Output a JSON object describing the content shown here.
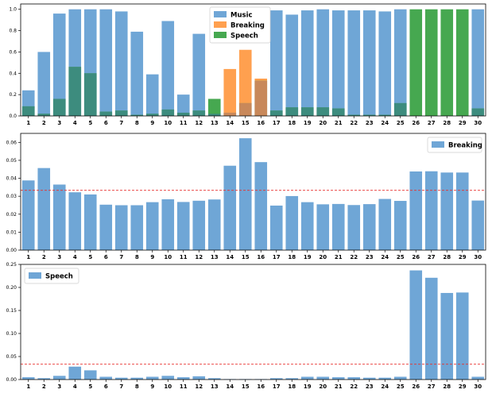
{
  "colors": {
    "music": "#6fa6d6",
    "breaking": "#ffa04f",
    "speech": "#46a850",
    "overlap_music_speech": "#3d8c7e",
    "overlap_breaking_speech": "#c8885a",
    "threshold": "#e8302e",
    "axes": "#000000"
  },
  "chart_data": [
    {
      "type": "bar",
      "title": "",
      "stacking": "overlay",
      "categories": [
        "1",
        "2",
        "3",
        "4",
        "5",
        "6",
        "7",
        "8",
        "9",
        "10",
        "11",
        "12",
        "13",
        "14",
        "15",
        "16",
        "17",
        "18",
        "19",
        "20",
        "21",
        "22",
        "23",
        "24",
        "25",
        "26",
        "27",
        "28",
        "29",
        "30"
      ],
      "ylim": [
        0,
        1.05
      ],
      "yticks": [
        "0.0",
        "0.2",
        "0.4",
        "0.6",
        "0.8",
        "1.0"
      ],
      "ytick_values": [
        0,
        0.2,
        0.4,
        0.6,
        0.8,
        1.0
      ],
      "legend": {
        "placement": "top-center",
        "entries": [
          "Music",
          "Breaking",
          "Speech"
        ]
      },
      "series": [
        {
          "name": "Music",
          "color_key": "music",
          "values": [
            0.24,
            0.6,
            0.96,
            1.0,
            1.0,
            1.0,
            0.98,
            0.79,
            0.39,
            0.89,
            0.2,
            0.77,
            0.02,
            0.01,
            0.0,
            0.01,
            0.99,
            0.95,
            0.99,
            1.0,
            0.99,
            0.99,
            0.99,
            0.98,
            1.0,
            0.01,
            0.0,
            0.0,
            0.0,
            1.0
          ]
        },
        {
          "name": "Breaking",
          "color_key": "breaking",
          "values": [
            0,
            0,
            0,
            0,
            0,
            0,
            0,
            0,
            0,
            0,
            0,
            0,
            0,
            0.44,
            0.62,
            0.35,
            0,
            0,
            0,
            0,
            0,
            0,
            0,
            0,
            0,
            0,
            0,
            0,
            0,
            0
          ]
        },
        {
          "name": "Speech",
          "color_key": "speech",
          "values": [
            0.09,
            0.02,
            0.16,
            0.46,
            0.4,
            0.04,
            0.05,
            0.01,
            0.02,
            0.06,
            0.03,
            0.05,
            0.16,
            0.03,
            0.12,
            0.33,
            0.05,
            0.08,
            0.08,
            0.08,
            0.07,
            0.01,
            0.01,
            0.01,
            0.12,
            1.0,
            1.0,
            1.0,
            1.0,
            0.07
          ]
        }
      ]
    },
    {
      "type": "bar",
      "title": "",
      "categories": [
        "1",
        "2",
        "3",
        "4",
        "5",
        "6",
        "7",
        "8",
        "9",
        "10",
        "11",
        "12",
        "13",
        "14",
        "15",
        "16",
        "17",
        "18",
        "19",
        "20",
        "21",
        "22",
        "23",
        "24",
        "25",
        "26",
        "27",
        "28",
        "29",
        "30"
      ],
      "ylim": [
        0,
        0.065
      ],
      "yticks": [
        "0.00",
        "0.01",
        "0.02",
        "0.03",
        "0.04",
        "0.05",
        "0.06"
      ],
      "ytick_values": [
        0,
        0.01,
        0.02,
        0.03,
        0.04,
        0.05,
        0.06
      ],
      "threshold": 0.0333,
      "legend": {
        "placement": "top-right",
        "entries": [
          "Breaking"
        ]
      },
      "series": [
        {
          "name": "Breaking",
          "color_key": "music",
          "values": [
            0.0388,
            0.0457,
            0.0365,
            0.0322,
            0.031,
            0.0253,
            0.025,
            0.025,
            0.0267,
            0.0283,
            0.0268,
            0.0275,
            0.0282,
            0.047,
            0.0623,
            0.049,
            0.0248,
            0.0301,
            0.0267,
            0.0255,
            0.0257,
            0.0251,
            0.0256,
            0.0285,
            0.0274,
            0.0438,
            0.0439,
            0.0432,
            0.0432,
            0.0276
          ]
        }
      ]
    },
    {
      "type": "bar",
      "title": "",
      "categories": [
        "1",
        "2",
        "3",
        "4",
        "5",
        "6",
        "7",
        "8",
        "9",
        "10",
        "11",
        "12",
        "13",
        "14",
        "15",
        "16",
        "17",
        "18",
        "19",
        "20",
        "21",
        "22",
        "23",
        "24",
        "25",
        "26",
        "27",
        "28",
        "29",
        "30"
      ],
      "ylim": [
        0,
        0.25
      ],
      "yticks": [
        "0.00",
        "0.05",
        "0.10",
        "0.15",
        "0.20",
        "0.25"
      ],
      "ytick_values": [
        0,
        0.05,
        0.1,
        0.15,
        0.2,
        0.25
      ],
      "threshold": 0.0333,
      "legend": {
        "placement": "top-left",
        "entries": [
          "Speech"
        ]
      },
      "series": [
        {
          "name": "Speech",
          "color_key": "music",
          "values": [
            0.005,
            0.003,
            0.008,
            0.028,
            0.02,
            0.006,
            0.004,
            0.004,
            0.006,
            0.008,
            0.005,
            0.007,
            0.003,
            0.001,
            0.001,
            0.001,
            0.003,
            0.003,
            0.006,
            0.006,
            0.005,
            0.005,
            0.004,
            0.004,
            0.006,
            0.237,
            0.221,
            0.188,
            0.189,
            0.006
          ]
        }
      ]
    }
  ]
}
